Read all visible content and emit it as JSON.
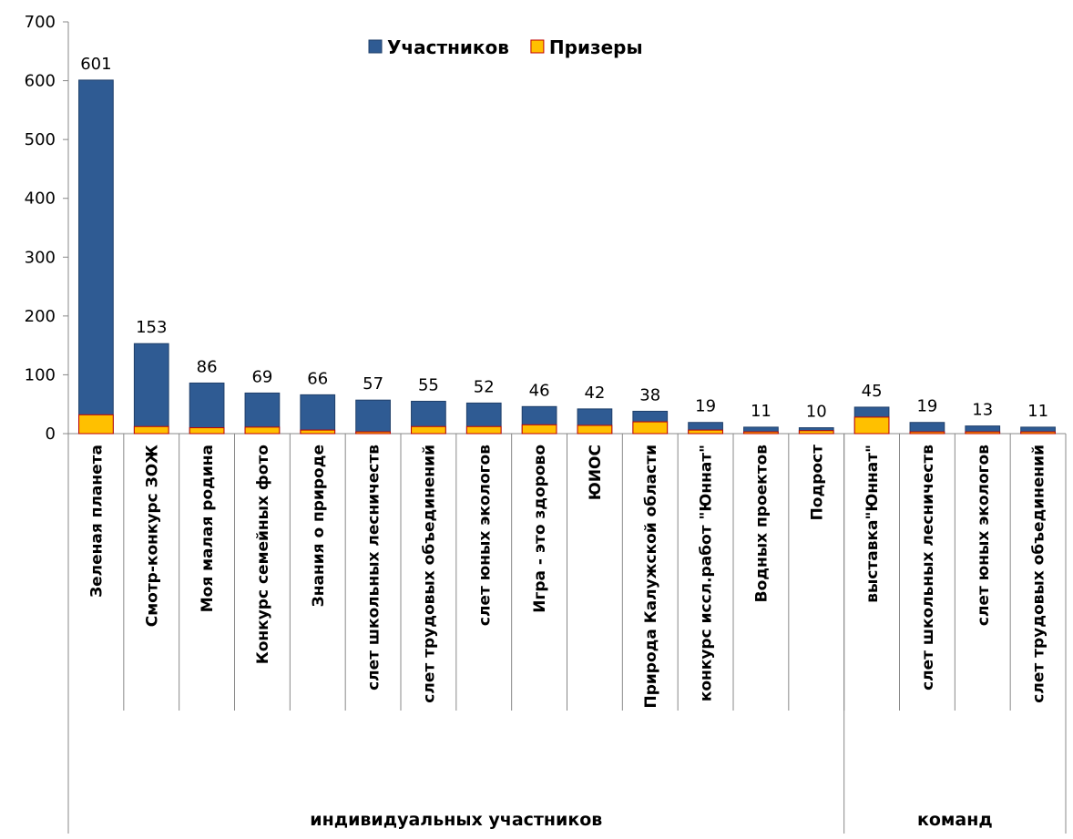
{
  "chart_data": {
    "type": "bar",
    "categories": [
      "Зеленая планета",
      "Смотр-конкурс ЗОЖ",
      "Моя малая родина",
      "Конкурс семейных фото",
      "Знания о природе",
      "слет школьных лесничеств",
      "слет трудовых объединений",
      "слет юных экологов",
      "Игра - это здорово",
      "ЮИОС",
      "Природа Калужской области",
      "конкурс иссл.работ \"Юннат\"",
      "Водных проектов",
      "Подрост",
      "выставка\"Юннат\"",
      "слет школьных лесничеств",
      "слет юных экологов",
      "слет трудовых объединений"
    ],
    "groups": [
      {
        "name": "индивидуальных участников",
        "span": 14
      },
      {
        "name": "команд",
        "span": 4
      }
    ],
    "series": [
      {
        "name": "Участников",
        "color": "#2f5b93",
        "values": [
          601,
          153,
          86,
          69,
          66,
          57,
          55,
          52,
          46,
          42,
          38,
          19,
          11,
          10,
          45,
          19,
          13,
          11
        ]
      },
      {
        "name": "Призеры",
        "color": "#ffc000",
        "values": [
          32,
          12,
          10,
          11,
          6,
          3,
          12,
          12,
          15,
          14,
          20,
          6,
          3,
          5,
          28,
          3,
          3,
          3
        ]
      }
    ],
    "ylim": [
      0,
      700
    ],
    "yticks": [
      0,
      100,
      200,
      300,
      400,
      500,
      600,
      700
    ],
    "legend": "top"
  }
}
